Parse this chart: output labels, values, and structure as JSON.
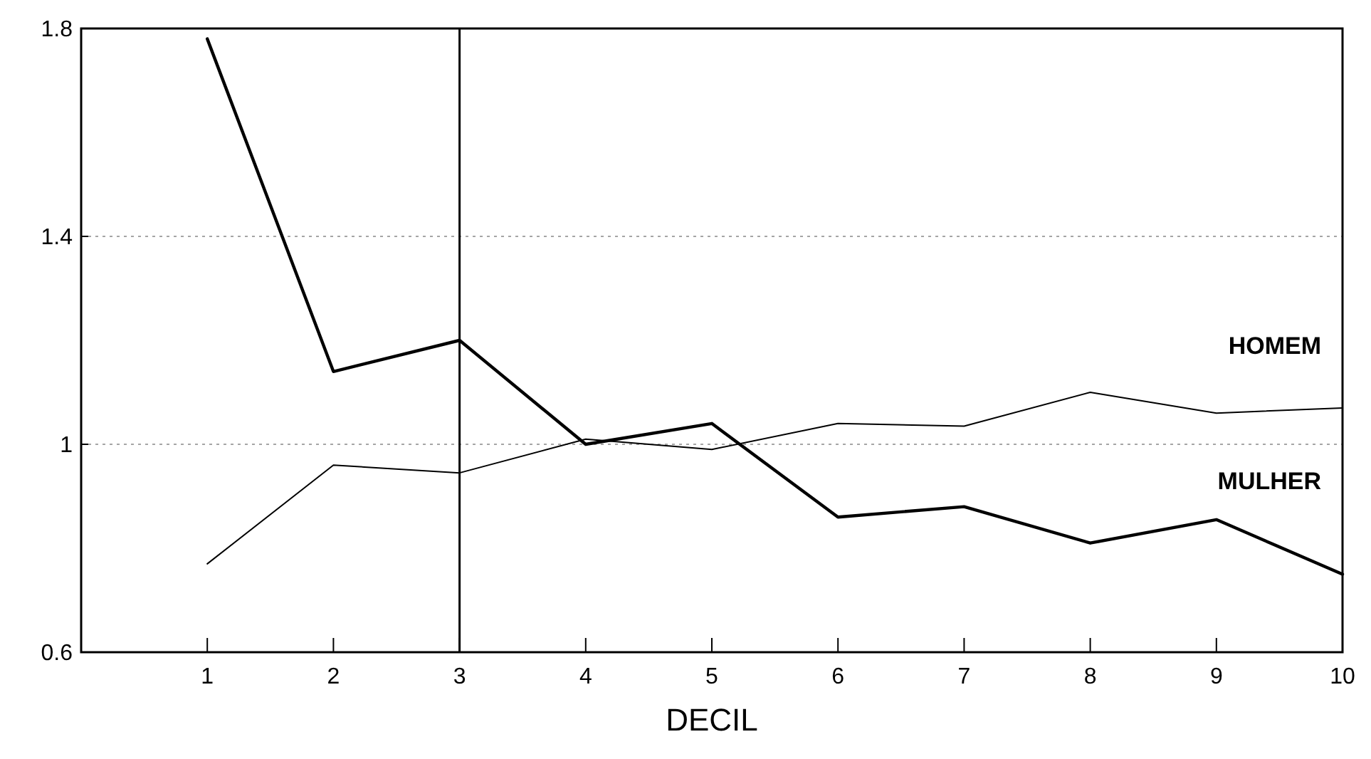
{
  "chart_data": {
    "type": "line",
    "xlabel": "DECIL",
    "x": [
      1,
      2,
      3,
      4,
      5,
      6,
      7,
      8,
      9,
      10
    ],
    "xlim": [
      0,
      10
    ],
    "xticks": [
      1,
      2,
      3,
      4,
      5,
      6,
      7,
      8,
      9,
      10
    ],
    "ylim": [
      0.6,
      1.8
    ],
    "yticks": [
      0.6,
      1,
      1.4,
      1.8
    ],
    "grid": "y",
    "legend": false,
    "marker": "none",
    "line_style": "solid",
    "series": [
      {
        "name": "HOMEM",
        "color": "#000000",
        "values": [
          0.77,
          0.96,
          0.945,
          1.01,
          0.99,
          1.04,
          1.035,
          1.1,
          1.06,
          1.07
        ]
      },
      {
        "name": "MULHER",
        "color": "#000000",
        "values": [
          1.78,
          1.14,
          1.2,
          1.0,
          1.04,
          0.86,
          0.88,
          0.81,
          0.855,
          0.75
        ]
      }
    ],
    "ref_lines": [
      {
        "axis": "x",
        "value": 3,
        "color": "#000000"
      }
    ]
  }
}
